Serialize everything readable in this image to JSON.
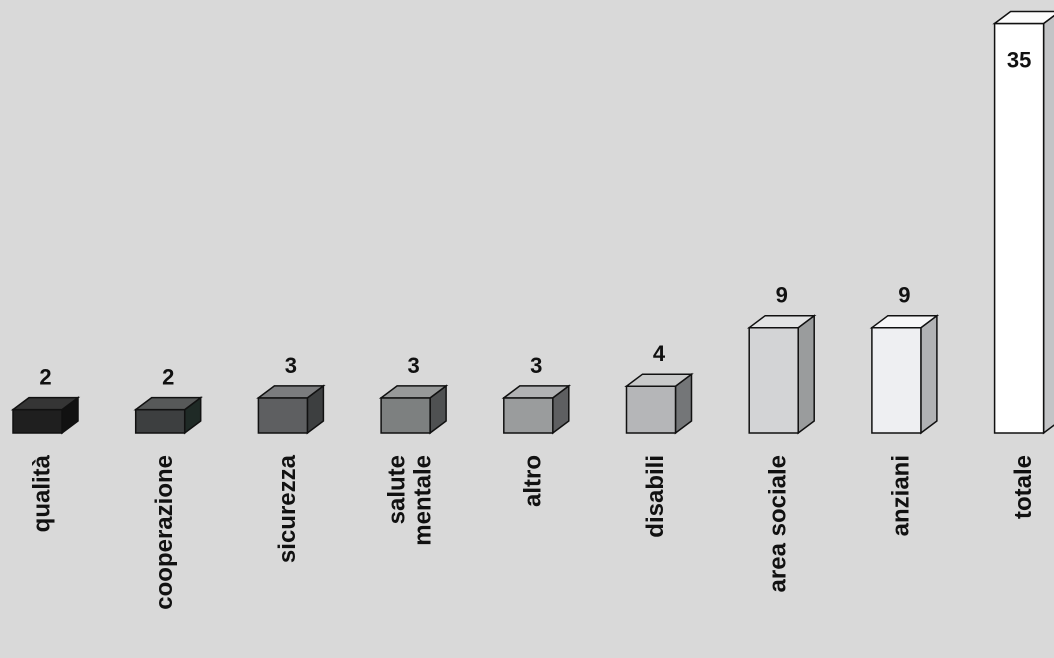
{
  "chart_data": {
    "type": "bar",
    "categories": [
      [
        "qualità"
      ],
      [
        "cooperazione"
      ],
      [
        "sicurezza"
      ],
      [
        "salute",
        "mentale"
      ],
      [
        "altro"
      ],
      [
        "disabili"
      ],
      [
        "area sociale"
      ],
      [
        "anziani"
      ],
      [
        "totale"
      ]
    ],
    "values": [
      2,
      2,
      3,
      3,
      3,
      4,
      9,
      9,
      35
    ],
    "value_labels": [
      "2",
      "2",
      "3",
      "3",
      "3",
      "4",
      "9",
      "9",
      "35"
    ],
    "title": "",
    "xlabel": "",
    "ylabel": "",
    "ylim": [
      0,
      35
    ],
    "grid": false,
    "legend": "none",
    "style": "3d-column",
    "colors": {
      "background": "#d9d9d9",
      "outline": "#111111",
      "front": [
        "#1f1f1f",
        "#3d3f40",
        "#5e5f61",
        "#7d8080",
        "#9a9c9d",
        "#b5b6b8",
        "#d3d4d6",
        "#eeeff2",
        "#ffffff"
      ],
      "side": [
        "#111111",
        "#1f2a26",
        "#3d3f40",
        "#4f5152",
        "#5e5f61",
        "#747678",
        "#9a9c9d",
        "#b1b2b4",
        "#c3c4c6"
      ],
      "top": [
        "#353535",
        "#575959",
        "#7b7c7e",
        "#979999",
        "#b1b2b4",
        "#c9caca",
        "#e2e3e4",
        "#f7f7f8",
        "#fcfcfc"
      ]
    }
  }
}
